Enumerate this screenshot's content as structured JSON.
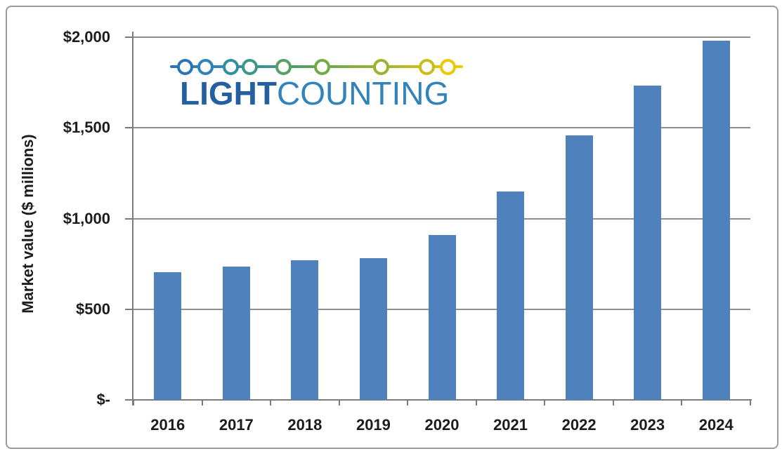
{
  "frame": {
    "border_color": "#9b9b9b",
    "background": "#ffffff"
  },
  "logo": {
    "text_bold": "LIGHT",
    "text_regular": "COUNTING",
    "text_bold_color": "#24609f",
    "text_regular_color": "#3183ba",
    "line_gradient": [
      "#2a74b5",
      "#2e86bc",
      "#34919e",
      "#4d9e6c",
      "#74aa45",
      "#9db233",
      "#ccbe1b",
      "#eccb00"
    ],
    "beads": [
      {
        "name": "bead-1",
        "x": 263,
        "color": "#2a74b5"
      },
      {
        "name": "bead-2",
        "x": 292,
        "color": "#2d82ba"
      },
      {
        "name": "bead-3",
        "x": 328,
        "color": "#318fa2"
      },
      {
        "name": "bead-4",
        "x": 355,
        "color": "#3d9787"
      },
      {
        "name": "bead-5",
        "x": 403,
        "color": "#55a062"
      },
      {
        "name": "bead-6",
        "x": 458,
        "color": "#73aa45"
      },
      {
        "name": "bead-7",
        "x": 542,
        "color": "#9bb233"
      },
      {
        "name": "bead-8",
        "x": 607,
        "color": "#c9bd1a"
      },
      {
        "name": "bead-9",
        "x": 637,
        "color": "#e9ca05"
      }
    ]
  },
  "chart_data": {
    "type": "bar",
    "title": "",
    "xlabel": "",
    "ylabel": "Market value ($ millions)",
    "categories": [
      "2016",
      "2017",
      "2018",
      "2019",
      "2020",
      "2021",
      "2022",
      "2023",
      "2024"
    ],
    "values": [
      705,
      735,
      770,
      780,
      910,
      1150,
      1460,
      1735,
      1980
    ],
    "ylim": [
      0,
      2000
    ],
    "yticks": [
      {
        "value": 0,
        "label": "$-"
      },
      {
        "value": 500,
        "label": "$500"
      },
      {
        "value": 1000,
        "label": "$1,000"
      },
      {
        "value": 1500,
        "label": "$1,500"
      },
      {
        "value": 2000,
        "label": "$2,000"
      }
    ],
    "bar_color": "#4f81bd",
    "gridline_color": "#8f8f8f",
    "axis_color": "#7c7c7c",
    "grid": true,
    "legend": false
  }
}
